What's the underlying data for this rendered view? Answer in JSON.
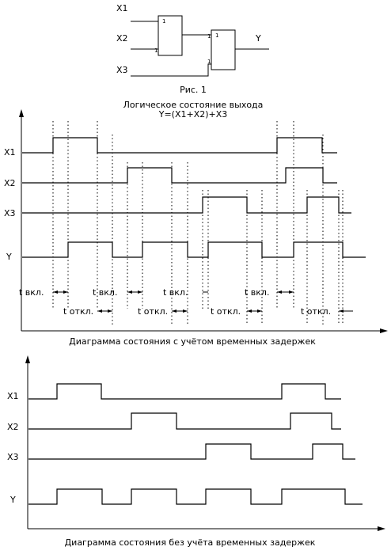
{
  "circuit": {
    "inputs": [
      "X1",
      "X2",
      "X3"
    ],
    "output": "Y",
    "gate1_label": "1",
    "gate2_label": "1",
    "figure_caption": "Рис. 1",
    "title_line1": "Логическое состояние выхода",
    "title_line2": "Y=(X1+X2)+X3"
  },
  "diagram_with_delays": {
    "caption": "Диаграмма состояния с учётом временных задержек",
    "signals": [
      {
        "name": "X1",
        "transitions": [
          0,
          1,
          2,
          0,
          7,
          1,
          8,
          0
        ],
        "end": 8.3
      },
      {
        "name": "X2",
        "transitions": [
          0,
          0,
          3,
          1,
          4,
          0,
          7.2,
          1,
          8,
          0
        ],
        "end": 8.3
      },
      {
        "name": "X3",
        "transitions": [
          0,
          0,
          5,
          1,
          6,
          0,
          8,
          1,
          8.6,
          0
        ],
        "end": 8.9
      },
      {
        "name": "Y",
        "transitions": [
          0,
          0,
          1.4,
          1,
          2.4,
          0,
          3.4,
          1,
          4.4,
          0,
          5.4,
          1,
          6.4,
          0,
          7.4,
          1,
          8.6,
          0
        ],
        "end": 9.2
      }
    ],
    "on_delay_label": "t вкл.",
    "off_delay_label": "t откл.",
    "on_delay_labels": [
      "t вкл.",
      "t вкл.",
      "t вкл.",
      "t вкл."
    ],
    "off_delay_labels": [
      "t откл.",
      "t откл.",
      "t откл.",
      "t откл."
    ]
  },
  "diagram_without_delays": {
    "caption": "Диаграмма состояния без учёта временных задержек",
    "signals": [
      {
        "name": "X1",
        "transitions": [
          0,
          0,
          0.8,
          1,
          2,
          0,
          7,
          1,
          8,
          0
        ],
        "end": 8.3
      },
      {
        "name": "X2",
        "transitions": [
          0,
          0,
          3,
          1,
          4,
          0,
          7.2,
          1,
          8,
          0
        ],
        "end": 8.3
      },
      {
        "name": "X3",
        "transitions": [
          0,
          0,
          5,
          1,
          6,
          0,
          8,
          1,
          8.6,
          0
        ],
        "end": 8.9
      },
      {
        "name": "Y",
        "transitions": [
          0,
          0,
          0.8,
          1,
          2,
          0,
          3,
          1,
          4,
          0,
          5,
          1,
          6,
          0,
          7,
          1,
          8.6,
          0
        ],
        "end": 9.2
      }
    ]
  }
}
